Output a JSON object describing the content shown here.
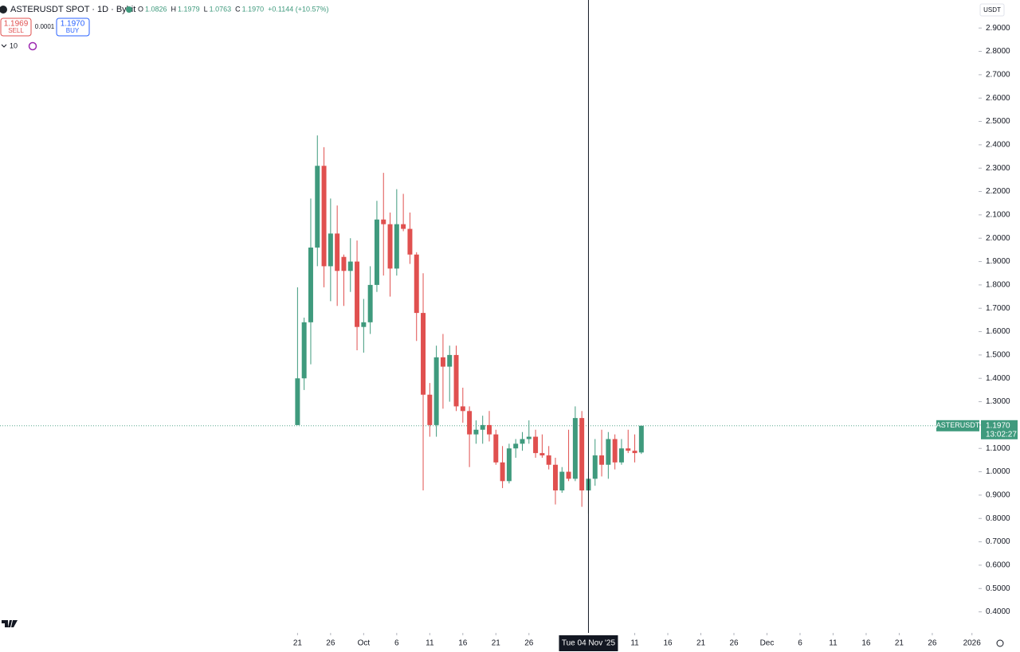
{
  "header": {
    "symbol_title": "ASTERUSDT SPOT · 1D · Bybit",
    "ohlc_legend": [
      {
        "key": "O",
        "value": "1.0826"
      },
      {
        "key": "H",
        "value": "1.1979"
      },
      {
        "key": "L",
        "value": "1.0763"
      },
      {
        "key": "C",
        "value": "1.1970"
      }
    ],
    "change": "+0.1144 (+10.57%)",
    "sell": {
      "price": "1.1969",
      "label": "SELL"
    },
    "spread": "0.0001",
    "buy": {
      "price": "1.1970",
      "label": "BUY"
    },
    "indicators_count": "10",
    "currency": "USDT"
  },
  "chart_data": {
    "type": "candlestick",
    "up_color": "#3f9a7d",
    "down_color": "#e0504f",
    "xlim": [
      -45,
      103
    ],
    "ylim": [
      0.31,
      3.02
    ],
    "xticks": [
      {
        "value": 0,
        "label": "21"
      },
      {
        "value": 5,
        "label": "26"
      },
      {
        "value": 10,
        "label": "Oct"
      },
      {
        "value": 15,
        "label": "6"
      },
      {
        "value": 20,
        "label": "11"
      },
      {
        "value": 25,
        "label": "16"
      },
      {
        "value": 30,
        "label": "21"
      },
      {
        "value": 35,
        "label": "26"
      },
      {
        "value": 51,
        "label": "11"
      },
      {
        "value": 56,
        "label": "16"
      },
      {
        "value": 61,
        "label": "21"
      },
      {
        "value": 66,
        "label": "26"
      },
      {
        "value": 71,
        "label": "Dec"
      },
      {
        "value": 76,
        "label": "6"
      },
      {
        "value": 81,
        "label": "11"
      },
      {
        "value": 86,
        "label": "16"
      },
      {
        "value": 91,
        "label": "21"
      },
      {
        "value": 96,
        "label": "26"
      },
      {
        "value": 102,
        "label": "2026"
      }
    ],
    "yticks": [
      {
        "value": 0.4,
        "label": "0.4000"
      },
      {
        "value": 0.5,
        "label": "0.5000"
      },
      {
        "value": 0.6,
        "label": "0.6000"
      },
      {
        "value": 0.7,
        "label": "0.7000"
      },
      {
        "value": 0.8,
        "label": "0.8000"
      },
      {
        "value": 0.9,
        "label": "0.9000"
      },
      {
        "value": 1.0,
        "label": "1.0000"
      },
      {
        "value": 1.1,
        "label": "1.1000"
      },
      {
        "value": 1.2,
        "label": "1.2000"
      },
      {
        "value": 1.3,
        "label": "1.3000"
      },
      {
        "value": 1.4,
        "label": "1.4000"
      },
      {
        "value": 1.5,
        "label": "1.5000"
      },
      {
        "value": 1.6,
        "label": "1.6000"
      },
      {
        "value": 1.7,
        "label": "1.7000"
      },
      {
        "value": 1.8,
        "label": "1.8000"
      },
      {
        "value": 1.9,
        "label": "1.9000"
      },
      {
        "value": 2.0,
        "label": "2.0000"
      },
      {
        "value": 2.1,
        "label": "2.1000"
      },
      {
        "value": 2.2,
        "label": "2.2000"
      },
      {
        "value": 2.3,
        "label": "2.3000"
      },
      {
        "value": 2.4,
        "label": "2.4000"
      },
      {
        "value": 2.5,
        "label": "2.5000"
      },
      {
        "value": 2.6,
        "label": "2.6000"
      },
      {
        "value": 2.7,
        "label": "2.7000"
      },
      {
        "value": 2.8,
        "label": "2.8000"
      },
      {
        "value": 2.9,
        "label": "2.9000"
      }
    ],
    "crosshair": {
      "value": 44,
      "label": "Tue 04 Nov '25"
    },
    "last_price": {
      "name": "ASTERUSDT",
      "value": 1.197,
      "label": "1.1970",
      "countdown": "13:02:27"
    },
    "open": [
      1.2,
      1.4,
      1.64,
      1.96,
      2.31,
      1.88,
      2.02,
      1.92,
      1.86,
      1.9,
      1.62,
      1.64,
      1.8,
      2.08,
      2.06,
      1.87,
      2.06,
      2.04,
      1.93,
      1.68,
      1.33,
      1.2,
      1.49,
      1.45,
      1.5,
      1.28,
      1.26,
      1.16,
      1.18,
      1.2,
      1.16,
      1.04,
      0.96,
      1.1,
      1.12,
      1.14,
      1.15,
      1.08,
      1.07,
      1.03,
      0.92,
      1.0,
      0.97,
      1.23,
      0.92,
      0.97,
      1.07,
      1.03,
      1.14,
      1.04,
      1.1,
      1.09,
      1.0826
    ],
    "high": [
      1.79,
      1.66,
      2.17,
      2.44,
      2.39,
      2.17,
      2.14,
      1.93,
      2.0,
      1.99,
      1.74,
      1.88,
      2.16,
      2.28,
      2.11,
      2.21,
      2.19,
      2.11,
      1.94,
      1.85,
      1.38,
      1.54,
      1.59,
      1.54,
      1.54,
      1.36,
      1.28,
      1.22,
      1.24,
      1.26,
      1.18,
      1.11,
      1.12,
      1.14,
      1.17,
      1.22,
      1.18,
      1.16,
      1.11,
      1.06,
      1.02,
      1.18,
      1.28,
      1.26,
      1.0,
      1.14,
      1.18,
      1.17,
      1.16,
      1.14,
      1.18,
      1.16,
      1.1979
    ],
    "low": [
      1.2,
      1.35,
      1.46,
      1.88,
      1.79,
      1.73,
      1.71,
      1.71,
      1.77,
      1.52,
      1.51,
      1.59,
      1.77,
      1.84,
      1.75,
      1.84,
      2.03,
      1.89,
      1.56,
      0.92,
      1.15,
      1.15,
      1.27,
      1.3,
      1.26,
      1.21,
      1.02,
      1.12,
      1.12,
      1.13,
      1.03,
      0.93,
      0.95,
      1.06,
      1.09,
      1.12,
      1.06,
      1.06,
      1.01,
      0.86,
      0.91,
      0.96,
      0.96,
      0.85,
      0.82,
      0.94,
      0.98,
      0.97,
      1.01,
      1.03,
      1.08,
      1.04,
      1.0763
    ],
    "close": [
      1.4,
      1.64,
      1.96,
      2.31,
      1.88,
      2.02,
      1.86,
      1.86,
      1.9,
      1.62,
      1.64,
      1.8,
      2.08,
      2.06,
      1.87,
      2.06,
      2.04,
      1.93,
      1.68,
      1.33,
      1.2,
      1.49,
      1.45,
      1.5,
      1.28,
      1.26,
      1.16,
      1.18,
      1.2,
      1.16,
      1.04,
      0.96,
      1.1,
      1.12,
      1.14,
      1.15,
      1.08,
      1.07,
      1.03,
      0.92,
      1.0,
      0.97,
      1.23,
      0.92,
      0.97,
      1.07,
      1.03,
      1.14,
      1.04,
      1.1,
      1.09,
      1.08,
      1.197
    ]
  }
}
